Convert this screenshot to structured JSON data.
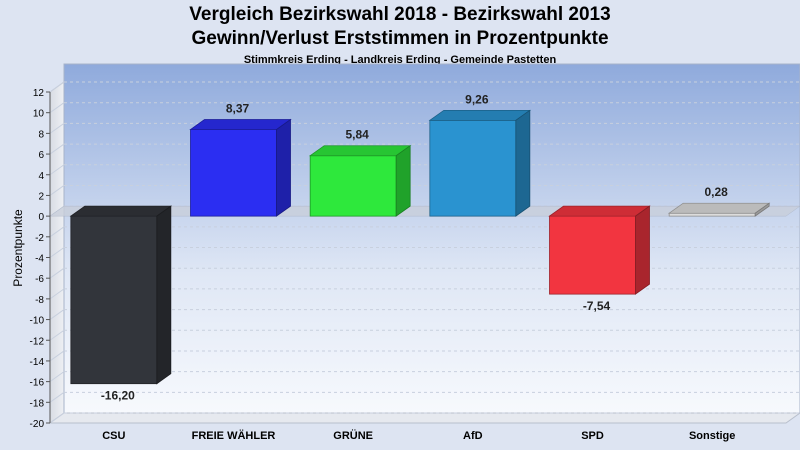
{
  "chart_data": {
    "type": "bar",
    "title": "Vergleich Bezirkswahl 2018 - Bezirkswahl 2013",
    "subtitle": "Gewinn/Verlust Erststimmen in Prozentpunkte",
    "caption": "Stimmkreis Erding - Landkreis Erding - Gemeinde Pastetten",
    "ylabel": "Prozentpunkte",
    "xlabel": "",
    "ylim": [
      -20,
      12
    ],
    "yticks": [
      "12",
      "10",
      "8",
      "6",
      "4",
      "2",
      "0",
      "-2",
      "-4",
      "-6",
      "-8",
      "-10",
      "-12",
      "-14",
      "-16",
      "-18",
      "-20"
    ],
    "grid": true,
    "categories": [
      "CSU",
      "FREIE WÄHLER",
      "GRÜNE",
      "AfD",
      "SPD",
      "Sonstige"
    ],
    "values": [
      -16.2,
      8.37,
      5.84,
      9.26,
      -7.54,
      0.28
    ],
    "value_labels": [
      "-16,20",
      "8,37",
      "5,84",
      "9,26",
      "-7,54",
      "0,28"
    ],
    "colors": [
      "#32353b",
      "#2b2ef2",
      "#2ee83c",
      "#2a93d0",
      "#f23540",
      "#dcdcdc"
    ]
  }
}
